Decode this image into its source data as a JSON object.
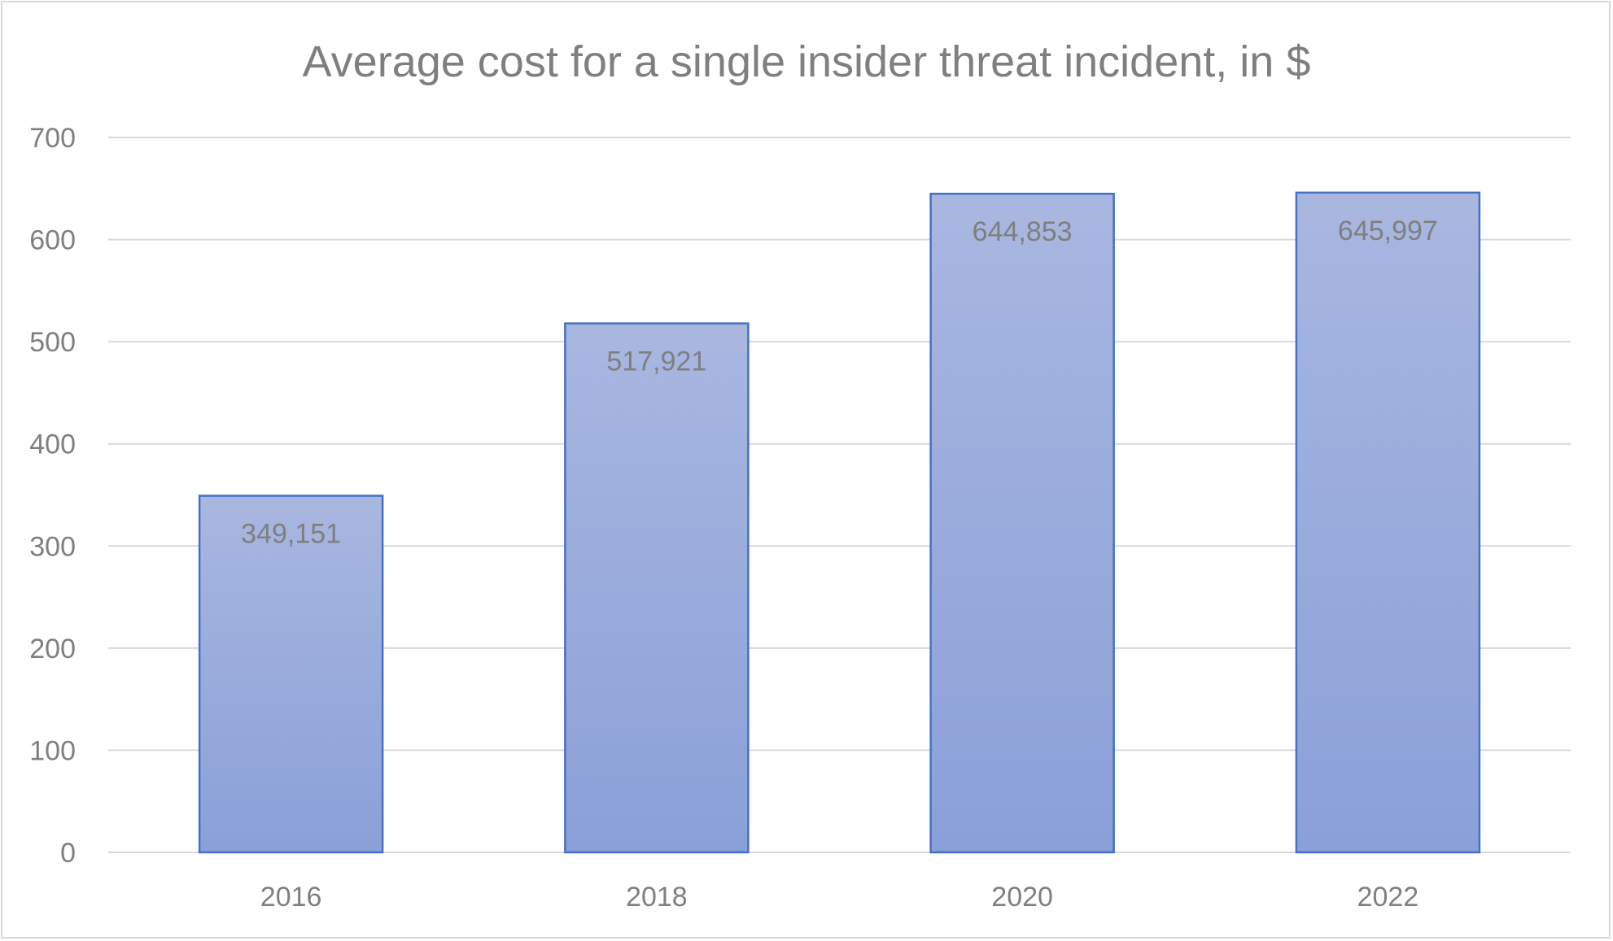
{
  "chart_data": {
    "type": "bar",
    "title": "Average cost for a single insider threat incident, in $",
    "xlabel": "",
    "ylabel": "",
    "categories": [
      "2016",
      "2018",
      "2020",
      "2022"
    ],
    "values": [
      349.151,
      517.921,
      644.853,
      645.997
    ],
    "data_labels": [
      "349,151",
      "517,921",
      "644,853",
      "645,997"
    ],
    "ylim": [
      0,
      700
    ],
    "yticks": [
      0,
      100,
      200,
      300,
      400,
      500,
      600,
      700
    ],
    "grid": true,
    "legend": "none",
    "colors": {
      "bar_top": "#a9b7e0",
      "bar_bottom": "#8aa0d8",
      "bar_border": "#4472c4",
      "text": "#7f7f7f",
      "grid": "#d9d9d9"
    }
  }
}
